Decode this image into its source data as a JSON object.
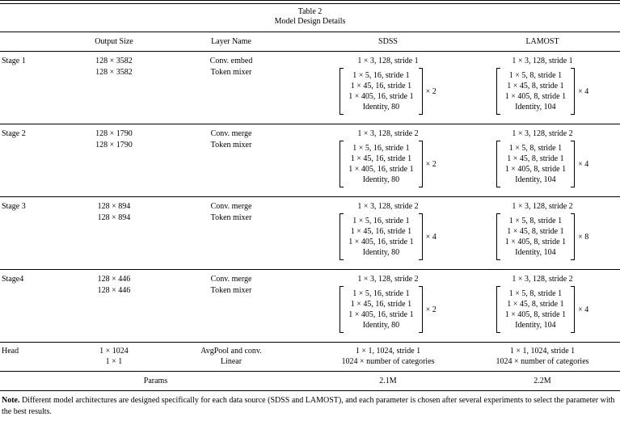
{
  "table": {
    "label": "Table 2",
    "caption": "Model Design Details",
    "columns": {
      "stage": "",
      "output_size": "Output Size",
      "layer_name": "Layer Name",
      "sdss": "SDSS",
      "lamost": "LAMOST"
    },
    "stages": [
      {
        "name": "Stage 1",
        "output1": "128 × 3582",
        "output2": "128 × 3582",
        "layer1": "Conv. embed",
        "layer2": "Token mixer",
        "sdss_conv": "1 × 3, 128, stride 1",
        "lamost_conv": "1 × 3, 128, stride 1",
        "sdss_matrix": {
          "rows": [
            "1 × 5, 16, stride 1",
            "1 × 45, 16, stride 1",
            "1 × 405, 16, stride 1",
            "Identity, 80"
          ],
          "mult": "× 2"
        },
        "lamost_matrix": {
          "rows": [
            "1 × 5, 8, stride 1",
            "1 × 45, 8, stride 1",
            "1 × 405, 8, stride 1",
            "Identity, 104"
          ],
          "mult": "× 4"
        }
      },
      {
        "name": "Stage 2",
        "output1": "128 × 1790",
        "output2": "128 × 1790",
        "layer1": "Conv. merge",
        "layer2": "Token mixer",
        "sdss_conv": "1 × 3, 128, stride 2",
        "lamost_conv": "1 × 3, 128, stride 2",
        "sdss_matrix": {
          "rows": [
            "1 × 5, 16, stride 1",
            "1 × 45, 16, stride 1",
            "1 × 405, 16, stride 1",
            "Identity, 80"
          ],
          "mult": "× 2"
        },
        "lamost_matrix": {
          "rows": [
            "1 × 5, 8, stride 1",
            "1 × 45, 8, stride 1",
            "1 × 405, 8, stride 1",
            "Identity, 104"
          ],
          "mult": "× 4"
        }
      },
      {
        "name": "Stage 3",
        "output1": "128 × 894",
        "output2": "128 × 894",
        "layer1": "Conv. merge",
        "layer2": "Token mixer",
        "sdss_conv": "1 × 3, 128, stride 2",
        "lamost_conv": "1 × 3, 128, stride 2",
        "sdss_matrix": {
          "rows": [
            "1 × 5, 16, stride 1",
            "1 × 45, 16, stride 1",
            "1 × 405, 16, stride 1",
            "Identity, 80"
          ],
          "mult": "× 4"
        },
        "lamost_matrix": {
          "rows": [
            "1 × 5, 8, stride 1",
            "1 × 45, 8, stride 1",
            "1 × 405, 8, stride 1",
            "Identity, 104"
          ],
          "mult": "× 8"
        }
      },
      {
        "name": "Stage4",
        "output1": "128 × 446",
        "output2": "128 × 446",
        "layer1": "Conv. merge",
        "layer2": "Token mixer",
        "sdss_conv": "1 × 3, 128, stride 2",
        "lamost_conv": "1 × 3, 128, stride 2",
        "sdss_matrix": {
          "rows": [
            "1 × 5, 16, stride 1",
            "1 × 45, 16, stride 1",
            "1 × 405, 16, stride 1",
            "Identity, 80"
          ],
          "mult": "× 2"
        },
        "lamost_matrix": {
          "rows": [
            "1 × 5, 8, stride 1",
            "1 × 45, 8, stride 1",
            "1 × 405, 8, stride 1",
            "Identity, 104"
          ],
          "mult": "× 4"
        }
      }
    ],
    "head": {
      "name": "Head",
      "output1": "1 × 1024",
      "output2": "1 × 1",
      "layer1": "AvgPool and conv.",
      "layer2": "Linear",
      "sdss1": "1 × 1, 1024, stride 1",
      "sdss2": "1024 × number of categories",
      "lamost1": "1 × 1, 1024, stride 1",
      "lamost2": "1024 × number of categories"
    },
    "params": {
      "label": "Params",
      "sdss": "2.1M",
      "lamost": "2.2M"
    },
    "note": {
      "label": "Note.",
      "text": "Different model architectures are designed specifically for each data source (SDSS and LAMOST), and each parameter is chosen after several experiments to select the parameter with the best results."
    }
  }
}
